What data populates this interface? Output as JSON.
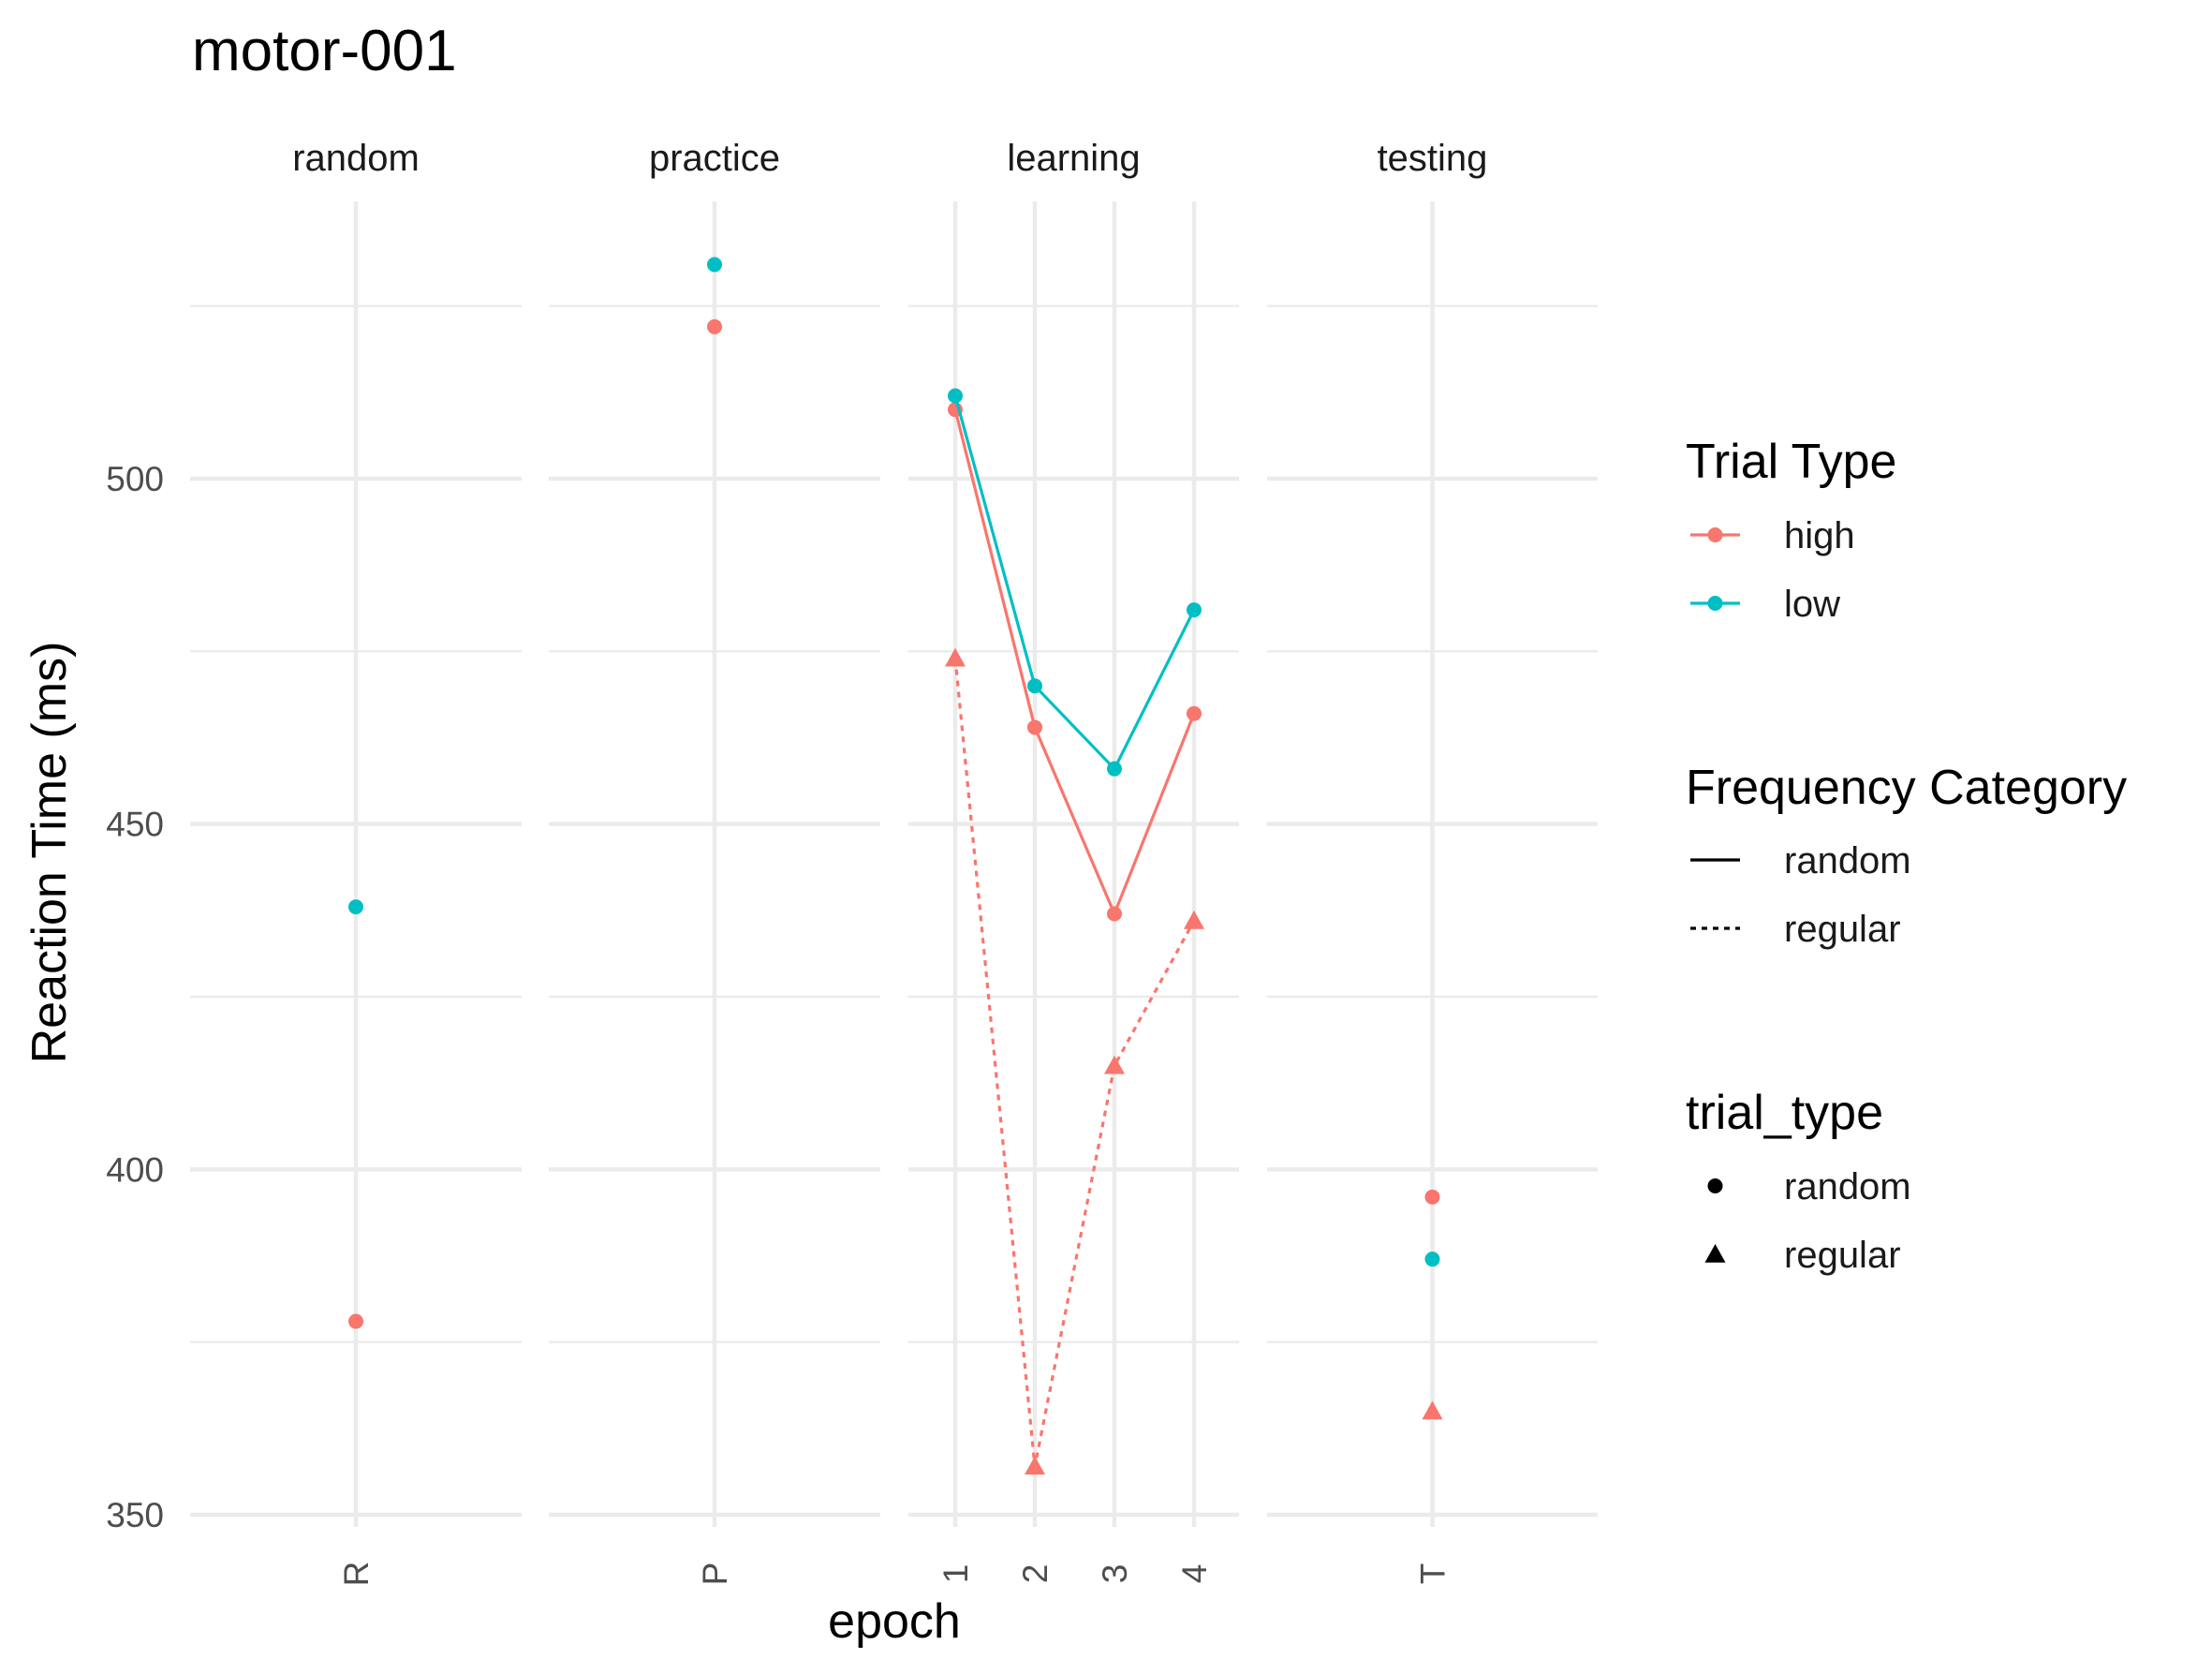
{
  "chart_data": {
    "type": "line",
    "title": "motor-001",
    "xlabel": "epoch",
    "ylabel": "Reaction Time (ms)",
    "ylim": [
      344,
      535
    ],
    "y_ticks": [
      350,
      400,
      450,
      500
    ],
    "grid": true,
    "legend_position": "right",
    "facets": [
      {
        "name": "random",
        "categories": [
          "R"
        ]
      },
      {
        "name": "practice",
        "categories": [
          "P"
        ]
      },
      {
        "name": "learning",
        "categories": [
          "1",
          "2",
          "3",
          "4"
        ]
      },
      {
        "name": "testing",
        "categories": [
          "T"
        ]
      }
    ],
    "series": [
      {
        "facet": "random",
        "trial_type": "high",
        "frequency_category": "random",
        "shape": "random",
        "x": [
          "R"
        ],
        "values": [
          378
        ]
      },
      {
        "facet": "random",
        "trial_type": "low",
        "frequency_category": "random",
        "shape": "random",
        "x": [
          "R"
        ],
        "values": [
          438
        ]
      },
      {
        "facet": "practice",
        "trial_type": "high",
        "frequency_category": "random",
        "shape": "random",
        "x": [
          "P"
        ],
        "values": [
          522
        ]
      },
      {
        "facet": "practice",
        "trial_type": "low",
        "frequency_category": "random",
        "shape": "random",
        "x": [
          "P"
        ],
        "values": [
          531
        ]
      },
      {
        "facet": "learning",
        "trial_type": "high",
        "frequency_category": "random",
        "shape": "random",
        "x": [
          "1",
          "2",
          "3",
          "4"
        ],
        "values": [
          510,
          464,
          437,
          466
        ]
      },
      {
        "facet": "learning",
        "trial_type": "low",
        "frequency_category": "random",
        "shape": "random",
        "x": [
          "1",
          "2",
          "3",
          "4"
        ],
        "values": [
          512,
          470,
          458,
          481
        ]
      },
      {
        "facet": "learning",
        "trial_type": "high",
        "frequency_category": "regular",
        "shape": "regular",
        "x": [
          "1",
          "2",
          "3",
          "4"
        ],
        "values": [
          474,
          357,
          415,
          436
        ]
      },
      {
        "facet": "testing",
        "trial_type": "high",
        "frequency_category": "random",
        "shape": "random",
        "x": [
          "T"
        ],
        "values": [
          396
        ]
      },
      {
        "facet": "testing",
        "trial_type": "low",
        "frequency_category": "random",
        "shape": "random",
        "x": [
          "T"
        ],
        "values": [
          387
        ]
      },
      {
        "facet": "testing",
        "trial_type": "high",
        "frequency_category": "regular",
        "shape": "regular",
        "x": [
          "T"
        ],
        "values": [
          365
        ]
      }
    ],
    "legends": [
      {
        "title": "Trial Type",
        "kind": "color",
        "items": [
          {
            "label": "high",
            "color": "#F8766D"
          },
          {
            "label": "low",
            "color": "#00BFC4"
          }
        ]
      },
      {
        "title": "Frequency Category",
        "kind": "linetype",
        "items": [
          {
            "label": "random",
            "dash": "solid"
          },
          {
            "label": "regular",
            "dash": "dotted"
          }
        ]
      },
      {
        "title": "trial_type",
        "kind": "shape",
        "items": [
          {
            "label": "random",
            "shape": "circle"
          },
          {
            "label": "regular",
            "shape": "triangle"
          }
        ]
      }
    ]
  }
}
